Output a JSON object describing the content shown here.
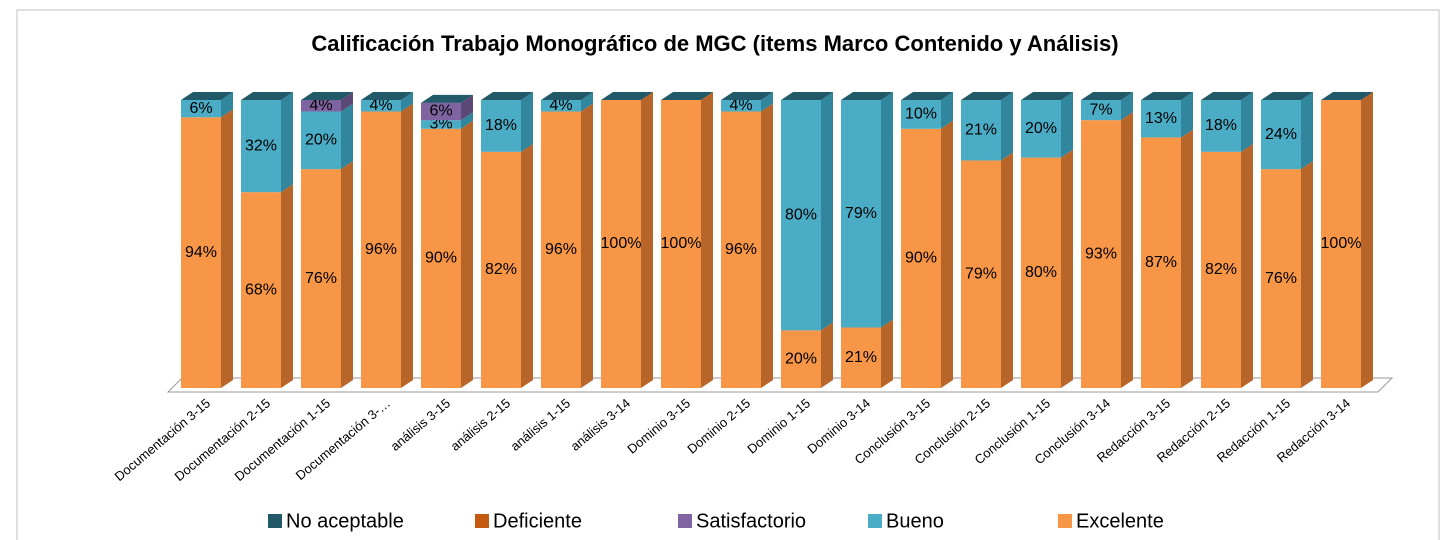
{
  "chart_data": {
    "type": "bar3d_stacked",
    "title": "Calificación  Trabajo Monográfico de MGC (items Marco Contenido y Análisis)",
    "categories": [
      "Documentación 3-15",
      "Documentación 2-15",
      "Documentación 1-15",
      "Documentación  3-…",
      "análisis 3-15",
      "análisis 2-15",
      "análisis 1-15",
      "análisis  3-14",
      "Dominio 3-15",
      "Dominio 2-15",
      "Dominio 1-15",
      "Dominio  3-14",
      "Conclusión 3-15",
      "Conclusión 2-15",
      "Conclusión 1-15",
      "Conclusión  3-14",
      "Redacción 3-15",
      "Redacción 2-15",
      "Redacción 1-15",
      "Redacción  3-14"
    ],
    "series": [
      {
        "name": "No aceptable",
        "color": "#215968",
        "side": "#17404b",
        "values": [
          0,
          0,
          0,
          0,
          0,
          0,
          0,
          0,
          0,
          0,
          0,
          0,
          0,
          0,
          0,
          0,
          0,
          0,
          0,
          0
        ]
      },
      {
        "name": "Deficiente",
        "color": "#c55a11",
        "side": "#8f410c",
        "values": [
          0,
          0,
          0,
          0,
          0,
          0,
          0,
          0,
          0,
          0,
          0,
          0,
          0,
          0,
          0,
          0,
          0,
          0,
          0,
          0
        ]
      },
      {
        "name": "Satisfactorio",
        "color": "#8064a2",
        "side": "#5c4876",
        "values": [
          0,
          0,
          4,
          0,
          6,
          0,
          0,
          0,
          0,
          0,
          0,
          0,
          0,
          0,
          0,
          0,
          0,
          0,
          0,
          0
        ],
        "value_labels": [
          null,
          null,
          "4%",
          null,
          "6%",
          null,
          null,
          null,
          null,
          null,
          null,
          null,
          null,
          null,
          null,
          null,
          null,
          null,
          null,
          null
        ]
      },
      {
        "name": "Bueno",
        "color": "#4bacc6",
        "side": "#31859c",
        "values": [
          6,
          32,
          20,
          4,
          3,
          18,
          4,
          0,
          0,
          4,
          80,
          79,
          10,
          21,
          20,
          7,
          13,
          18,
          24,
          0
        ],
        "value_labels": [
          "6%",
          "32%",
          "20%",
          "4%",
          "3%",
          "18%",
          "4%",
          null,
          null,
          "4%",
          "80%",
          "79%",
          "10%",
          "21%",
          "20%",
          "7%",
          "13%",
          "18%",
          "24%",
          null
        ]
      },
      {
        "name": "Excelente",
        "color": "#f79646",
        "side": "#b8652a",
        "values": [
          94,
          68,
          76,
          96,
          90,
          82,
          96,
          100,
          100,
          96,
          20,
          21,
          90,
          79,
          80,
          93,
          87,
          82,
          76,
          100
        ],
        "value_labels": [
          "94%",
          "68%",
          "76%",
          "96%",
          "90%",
          "82%",
          "96%",
          "100%",
          "100%",
          "96%",
          "20%",
          "21%",
          "90%",
          "79%",
          "80%",
          "93%",
          "87%",
          "82%",
          "76%",
          "100%"
        ]
      }
    ],
    "ylim": [
      0,
      100
    ]
  }
}
